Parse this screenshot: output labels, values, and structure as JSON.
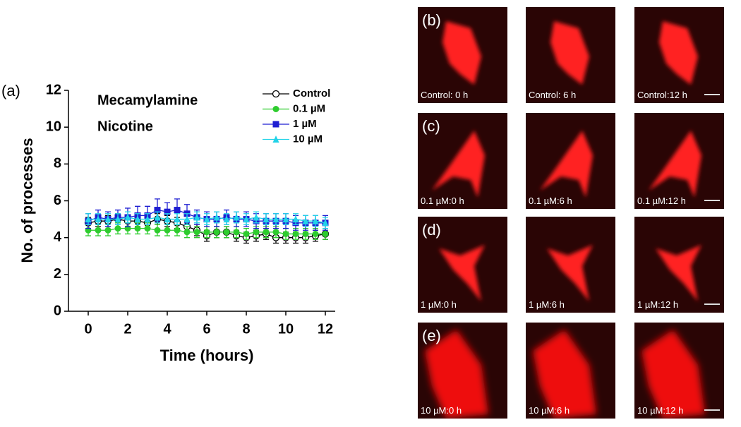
{
  "panel_label": "(a)",
  "chart_data": {
    "type": "line",
    "xlabel": "Time (hours)",
    "ylabel": "No. of processes",
    "annotations": [
      "Mecamylamine",
      "Nicotine"
    ],
    "x": [
      0,
      0.5,
      1,
      1.5,
      2,
      2.5,
      3,
      3.5,
      4,
      4.5,
      5,
      5.5,
      6,
      6.5,
      7,
      7.5,
      8,
      8.5,
      9,
      9.5,
      10,
      10.5,
      11,
      11.5,
      12
    ],
    "xlim": [
      -1,
      12.5
    ],
    "xticks": [
      0,
      2,
      4,
      6,
      8,
      10,
      12
    ],
    "ylim": [
      0,
      12
    ],
    "yticks": [
      0,
      2,
      4,
      6,
      8,
      10,
      12
    ],
    "legend": "upper right",
    "series": [
      {
        "name": "Control",
        "color": "#000000",
        "marker": "circle-open",
        "values": [
          4.8,
          4.9,
          4.9,
          5.0,
          4.9,
          4.9,
          4.8,
          5.0,
          4.9,
          4.8,
          4.6,
          4.4,
          4.1,
          4.3,
          4.3,
          4.1,
          4.0,
          4.1,
          4.2,
          4.0,
          4.0,
          4.0,
          4.0,
          4.1,
          4.2
        ],
        "errors": [
          0.3,
          0.3,
          0.3,
          0.3,
          0.3,
          0.3,
          0.3,
          0.3,
          0.3,
          0.3,
          0.3,
          0.3,
          0.3,
          0.3,
          0.3,
          0.3,
          0.3,
          0.3,
          0.3,
          0.3,
          0.3,
          0.3,
          0.3,
          0.3,
          0.3
        ]
      },
      {
        "name": "0.1 µM",
        "color": "#2ecc2e",
        "marker": "circle",
        "values": [
          4.4,
          4.4,
          4.4,
          4.5,
          4.5,
          4.5,
          4.5,
          4.4,
          4.4,
          4.4,
          4.3,
          4.3,
          4.3,
          4.3,
          4.3,
          4.3,
          4.2,
          4.3,
          4.3,
          4.3,
          4.2,
          4.2,
          4.2,
          4.2,
          4.2
        ],
        "errors": [
          0.3,
          0.3,
          0.3,
          0.3,
          0.3,
          0.3,
          0.3,
          0.3,
          0.3,
          0.3,
          0.3,
          0.3,
          0.3,
          0.3,
          0.3,
          0.3,
          0.3,
          0.3,
          0.3,
          0.3,
          0.3,
          0.3,
          0.3,
          0.3,
          0.3
        ]
      },
      {
        "name": "1 µM",
        "color": "#1e1ed2",
        "marker": "square",
        "values": [
          4.9,
          5.1,
          5.0,
          5.1,
          5.1,
          5.2,
          5.2,
          5.5,
          5.4,
          5.5,
          5.3,
          5.1,
          5.0,
          5.0,
          5.1,
          5.0,
          5.0,
          4.9,
          4.9,
          4.9,
          4.9,
          4.8,
          4.8,
          4.8,
          4.8
        ],
        "errors": [
          0.4,
          0.4,
          0.4,
          0.4,
          0.5,
          0.5,
          0.5,
          0.6,
          0.5,
          0.6,
          0.5,
          0.4,
          0.4,
          0.4,
          0.4,
          0.4,
          0.4,
          0.4,
          0.4,
          0.4,
          0.4,
          0.4,
          0.4,
          0.4,
          0.4
        ]
      },
      {
        "name": "10 µM",
        "color": "#22d3e8",
        "marker": "triangle",
        "values": [
          5.0,
          5.0,
          5.0,
          5.0,
          5.1,
          5.0,
          5.0,
          5.1,
          5.0,
          5.0,
          5.0,
          5.1,
          5.0,
          5.1,
          5.0,
          5.1,
          5.0,
          5.1,
          5.0,
          5.0,
          5.0,
          5.0,
          4.9,
          4.9,
          4.8
        ],
        "errors": [
          0.3,
          0.3,
          0.3,
          0.3,
          0.3,
          0.3,
          0.3,
          0.3,
          0.3,
          0.3,
          0.3,
          0.3,
          0.3,
          0.3,
          0.3,
          0.3,
          0.3,
          0.3,
          0.3,
          0.3,
          0.3,
          0.3,
          0.3,
          0.3,
          0.3
        ]
      }
    ]
  },
  "image_panels": [
    {
      "label": "(b)",
      "captions": [
        "Control: 0 h",
        "Control: 6 h",
        "Control:12 h"
      ]
    },
    {
      "label": "(c)",
      "captions": [
        "0.1 µM:0 h",
        "0.1 µM:6 h",
        "0.1 µM:12 h"
      ]
    },
    {
      "label": "(d)",
      "captions": [
        "1 µM:0 h",
        "1 µM:6 h",
        "1 µM:12 h"
      ]
    },
    {
      "label": "(e)",
      "captions": [
        "10 µM:0 h",
        "10 µM:6 h",
        "10 µM:12 h"
      ]
    }
  ]
}
